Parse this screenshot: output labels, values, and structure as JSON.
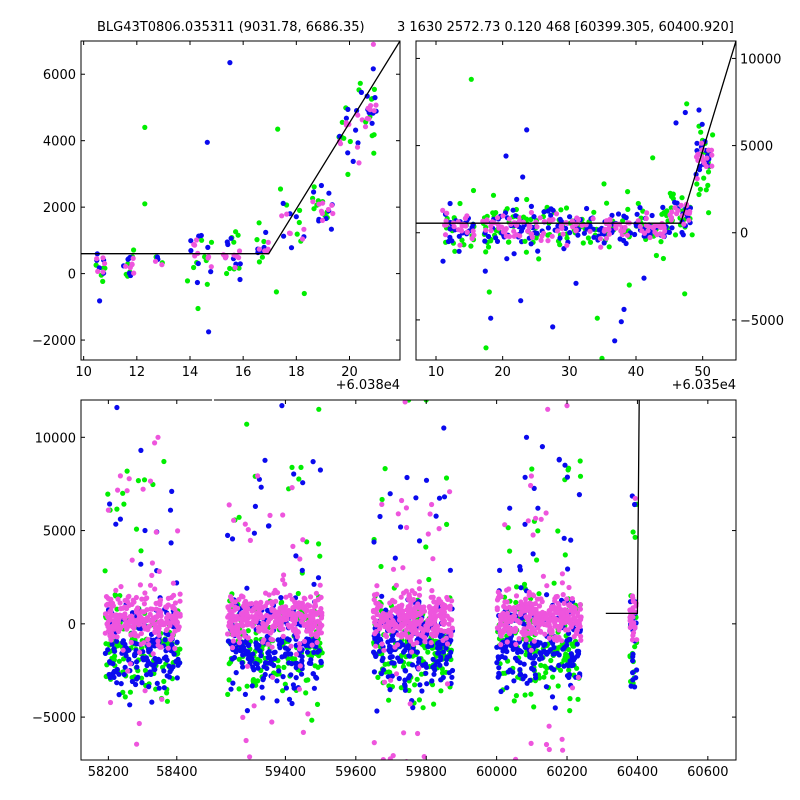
{
  "header": {
    "title_left": "BLG43T0806.035311 (9031.78, 6686.35)",
    "title_right": "3 1630 2572.73 0.120 468 [60399.305, 60400.920]"
  },
  "colors": {
    "blue": "#0a0aee",
    "green": "#00ee00",
    "pink": "#ee55dd",
    "line": "#000000"
  },
  "chart_data": [
    {
      "id": "zoom-left",
      "type": "scatter",
      "x_offset_label": "+6.038e4",
      "xlim": [
        9.9,
        21.9
      ],
      "ylim": [
        -2600,
        7000
      ],
      "x_ticks": [
        10,
        12,
        14,
        16,
        18,
        20
      ],
      "x_tick_labels": [
        "10",
        "12",
        "14",
        "16",
        "18",
        "20"
      ],
      "y_ticks": [
        -2000,
        0,
        2000,
        4000,
        6000
      ],
      "y_tick_labels": [
        "−2000",
        "0",
        "2000",
        "4000",
        "6000"
      ],
      "y_axis_side": "left",
      "fit_line": [
        [
          9.9,
          600
        ],
        [
          16.96,
          600
        ],
        [
          21.9,
          7000
        ]
      ],
      "clusters": [
        {
          "x": [
            10.4,
            10.8
          ],
          "center": 300,
          "spread": 400,
          "n": 16
        },
        {
          "x": [
            11.5,
            11.9
          ],
          "center": 300,
          "spread": 380,
          "n": 18
        },
        {
          "x": [
            12.7,
            13.0
          ],
          "center": 420,
          "spread": 300,
          "n": 6
        },
        {
          "x": [
            13.9,
            15.0
          ],
          "center": 600,
          "spread": 600,
          "n": 24
        },
        {
          "x": [
            15.1,
            15.9
          ],
          "center": 500,
          "spread": 500,
          "n": 24
        },
        {
          "x": [
            16.5,
            16.95
          ],
          "center": 900,
          "spread": 450,
          "n": 14
        },
        {
          "x": [
            17.4,
            18.3
          ],
          "center": 1300,
          "spread": 700,
          "n": 18
        },
        {
          "x": [
            18.6,
            19.4
          ],
          "center": 2000,
          "spread": 500,
          "n": 26
        },
        {
          "x": [
            19.6,
            20.5
          ],
          "center": 4300,
          "spread": 1000,
          "n": 26
        },
        {
          "x": [
            20.6,
            21.0
          ],
          "center": 5000,
          "spread": 900,
          "n": 24
        }
      ],
      "outliers": [
        [
          15.5,
          6350,
          "blue"
        ],
        [
          14.65,
          3950,
          "blue"
        ],
        [
          12.3,
          4400,
          "green"
        ],
        [
          17.3,
          4350,
          "green"
        ],
        [
          14.7,
          -1750,
          "blue"
        ],
        [
          10.6,
          -820,
          "blue"
        ],
        [
          14.3,
          -1050,
          "green"
        ],
        [
          18.3,
          -600,
          "green"
        ],
        [
          17.25,
          -550,
          "green"
        ],
        [
          12.3,
          2100,
          "green"
        ],
        [
          20.9,
          6900,
          "pink"
        ]
      ]
    },
    {
      "id": "zoom-right",
      "type": "scatter",
      "x_offset_label": "+6.035e4",
      "xlim": [
        7,
        55
      ],
      "ylim": [
        -7300,
        11000
      ],
      "x_ticks": [
        10,
        20,
        30,
        40,
        50
      ],
      "x_tick_labels": [
        "10",
        "20",
        "30",
        "40",
        "50"
      ],
      "y_ticks": [
        -5000,
        0,
        5000,
        10000
      ],
      "y_tick_labels": [
        "−5000",
        "0",
        "5000",
        "10000"
      ],
      "y_axis_side": "right",
      "fit_line": [
        [
          7,
          550
        ],
        [
          46.7,
          550
        ],
        [
          55,
          11000
        ]
      ],
      "clusters": [
        {
          "x": [
            11,
            16
          ],
          "center": 250,
          "spread": 900,
          "n": 70
        },
        {
          "x": [
            17,
            23
          ],
          "center": 250,
          "spread": 1000,
          "n": 90
        },
        {
          "x": [
            23,
            30
          ],
          "center": 250,
          "spread": 900,
          "n": 90
        },
        {
          "x": [
            30,
            38
          ],
          "center": 250,
          "spread": 900,
          "n": 100
        },
        {
          "x": [
            38,
            45
          ],
          "center": 300,
          "spread": 800,
          "n": 90
        },
        {
          "x": [
            45,
            48.5
          ],
          "center": 1000,
          "spread": 900,
          "n": 50
        },
        {
          "x": [
            49,
            51.5
          ],
          "center": 4200,
          "spread": 1500,
          "n": 50
        }
      ],
      "outliers": [
        [
          15.3,
          8800,
          "green"
        ],
        [
          23.6,
          5900,
          "blue"
        ],
        [
          20.5,
          4400,
          "blue"
        ],
        [
          23.0,
          3200,
          "blue"
        ],
        [
          35.2,
          2800,
          "green"
        ],
        [
          18.2,
          -4900,
          "blue"
        ],
        [
          18.0,
          -3400,
          "green"
        ],
        [
          17.5,
          -6600,
          "green"
        ],
        [
          22.7,
          -3900,
          "blue"
        ],
        [
          27.5,
          -5400,
          "blue"
        ],
        [
          34.2,
          -4900,
          "green"
        ],
        [
          34.9,
          -7200,
          "green"
        ],
        [
          36.8,
          -6200,
          "blue"
        ],
        [
          38.2,
          -4400,
          "blue"
        ],
        [
          37.8,
          -5100,
          "blue"
        ],
        [
          39.0,
          -3000,
          "green"
        ],
        [
          47.3,
          -3500,
          "green"
        ],
        [
          47.6,
          7400,
          "green"
        ],
        [
          47.4,
          6900,
          "blue"
        ],
        [
          46.0,
          6300,
          "blue"
        ],
        [
          42.5,
          4300,
          "green"
        ],
        [
          17.4,
          -2200,
          "blue"
        ],
        [
          25.4,
          -1500,
          "green"
        ],
        [
          31.0,
          -2900,
          "blue"
        ],
        [
          41.2,
          -2600,
          "blue"
        ]
      ]
    },
    {
      "id": "full-lightcurve",
      "type": "scatter",
      "xlim": [
        58120,
        60680
      ],
      "ylim": [
        -7300,
        12000
      ],
      "x_ticks": [
        58200,
        58400,
        59400,
        59600,
        59800,
        60000,
        60200,
        60400,
        60600
      ],
      "x_tick_labels": [
        "58200",
        "58400",
        "59400",
        "59600",
        "59800",
        "60000",
        "60200",
        "60400",
        "60600"
      ],
      "y_ticks": [
        -5000,
        0,
        5000,
        10000
      ],
      "y_tick_labels": [
        "−5000",
        "0",
        "5000",
        "10000"
      ],
      "y_axis_side": "left",
      "axis_break": [
        58500,
        59200
      ],
      "fit_line": [
        [
          60310,
          560
        ],
        [
          60399.8,
          560
        ],
        [
          60405,
          12000
        ]
      ],
      "seasons": [
        {
          "x": [
            58190,
            58410
          ],
          "n": 1300
        },
        {
          "x": [
            59235,
            59505
          ],
          "n": 1700
        },
        {
          "x": [
            59650,
            59875
          ],
          "n": 1500
        },
        {
          "x": [
            60000,
            60240
          ],
          "n": 1500
        },
        {
          "x": [
            60378,
            60398
          ],
          "n": 150
        }
      ],
      "outliers": [
        [
          58225,
          11600,
          "blue"
        ],
        [
          58295,
          9300,
          "blue"
        ],
        [
          58345,
          10000,
          "pink"
        ],
        [
          58335,
          9700,
          "pink"
        ],
        [
          59390,
          11700,
          "blue"
        ],
        [
          59495,
          11500,
          "green"
        ],
        [
          59750,
          12000,
          "green"
        ],
        [
          59740,
          11900,
          "pink"
        ],
        [
          59800,
          12000,
          "green"
        ],
        [
          59850,
          10500,
          "blue"
        ],
        [
          60145,
          11500,
          "pink"
        ],
        [
          60085,
          10000,
          "blue"
        ],
        [
          60130,
          9500,
          "blue"
        ],
        [
          60100,
          8300,
          "green"
        ],
        [
          60200,
          11700,
          "pink"
        ],
        [
          58385,
          7100,
          "blue"
        ],
        [
          59290,
          10700,
          "green"
        ]
      ]
    }
  ]
}
